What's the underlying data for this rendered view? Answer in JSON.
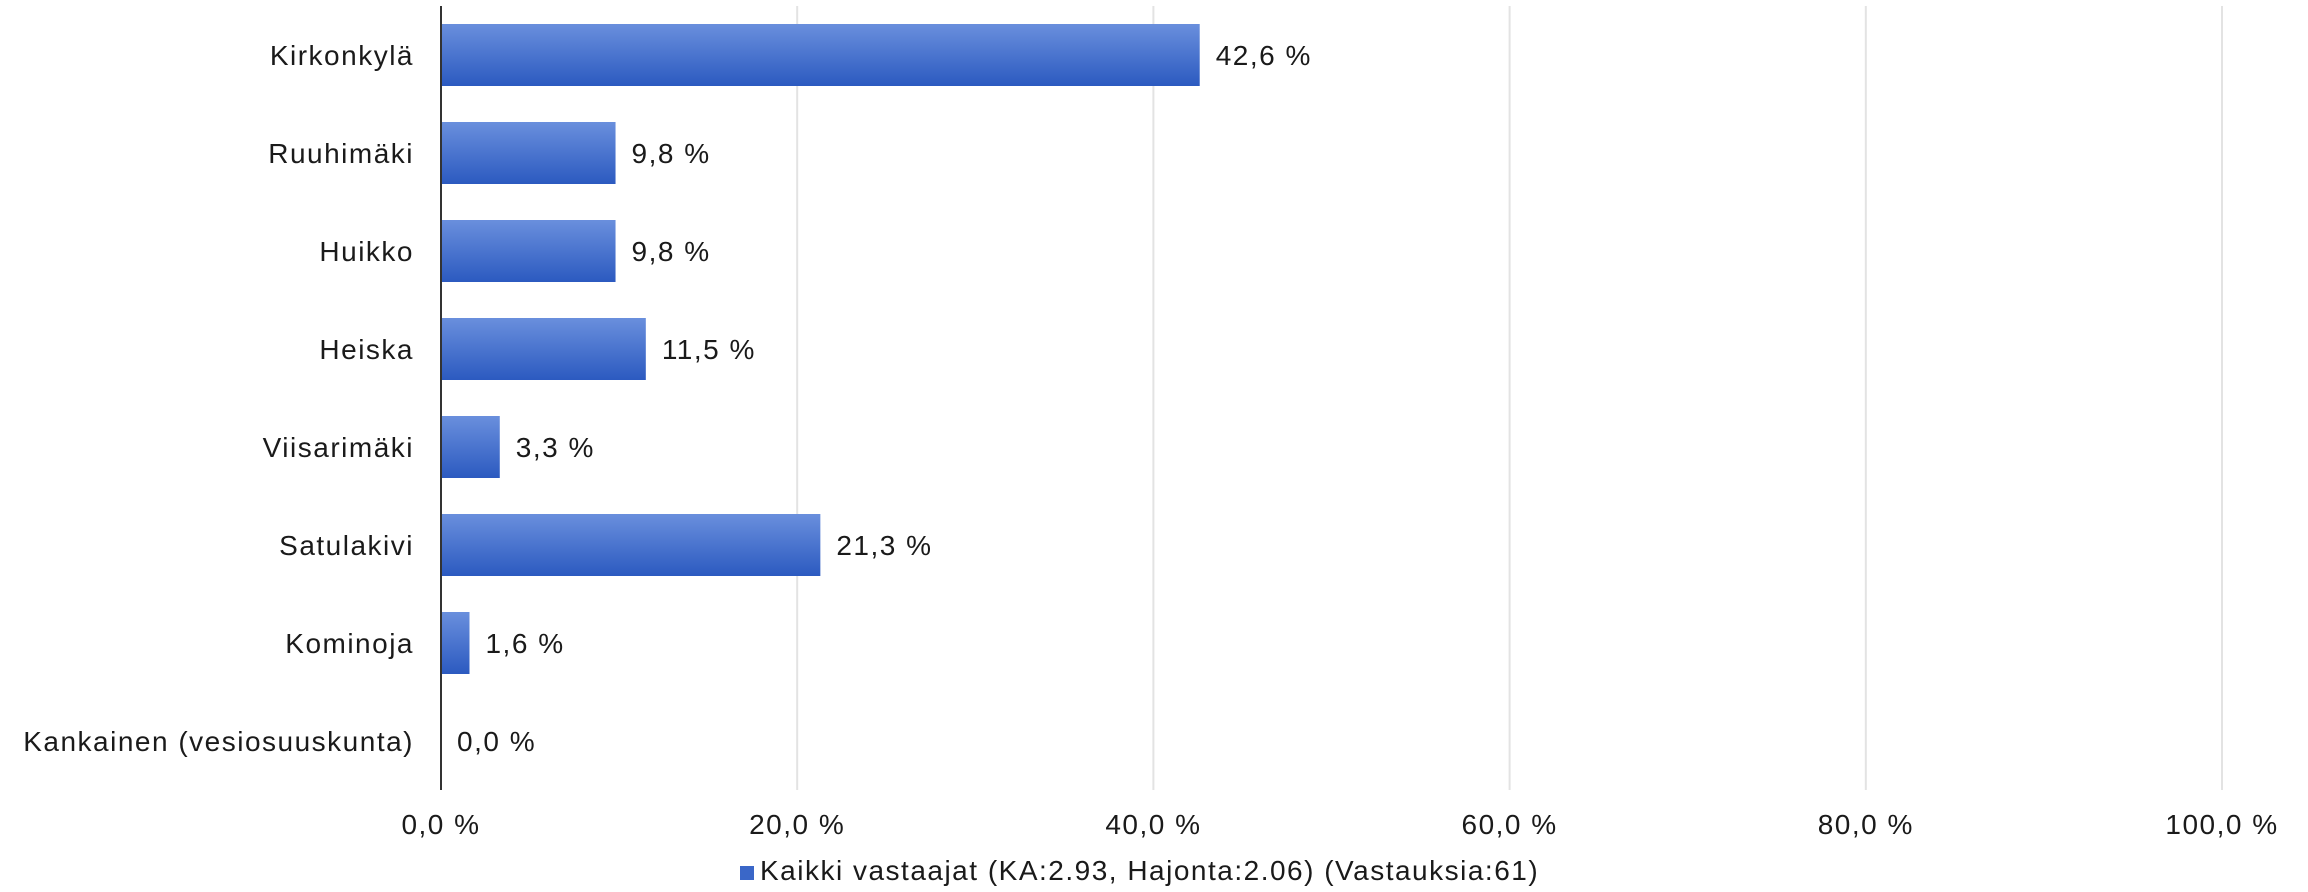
{
  "chart_data": {
    "type": "bar",
    "orientation": "horizontal",
    "categories": [
      "Kirkonkylä",
      "Ruuhimäki",
      "Huikko",
      "Heiska",
      "Viisarimäki",
      "Satulakivi",
      "Kominoja",
      "Kankainen (vesiosuuskunta)"
    ],
    "series": [
      {
        "name": "Kaikki vastaajat (KA:2.93, Hajonta:2.06) (Vastauksia:61)",
        "values": [
          42.6,
          9.8,
          9.8,
          11.5,
          3.3,
          21.3,
          1.6,
          0.0
        ],
        "value_labels": [
          "42,6 %",
          "9,8 %",
          "9,8 %",
          "11,5 %",
          "3,3 %",
          "21,3 %",
          "1,6 %",
          "0,0 %"
        ],
        "color": "#3a67c8"
      }
    ],
    "xlim": [
      0,
      100
    ],
    "xticks": [
      0,
      20,
      40,
      60,
      80,
      100
    ],
    "xtick_labels": [
      "0,0 %",
      "20,0 %",
      "40,0 %",
      "60,0 %",
      "80,0 %",
      "100,0 %"
    ],
    "grid": true,
    "legend_position": "bottom"
  },
  "legend": {
    "label": "Kaikki vastaajat (KA:2.93, Hajonta:2.06) (Vastauksia:61)",
    "color": "#3a67c8"
  }
}
